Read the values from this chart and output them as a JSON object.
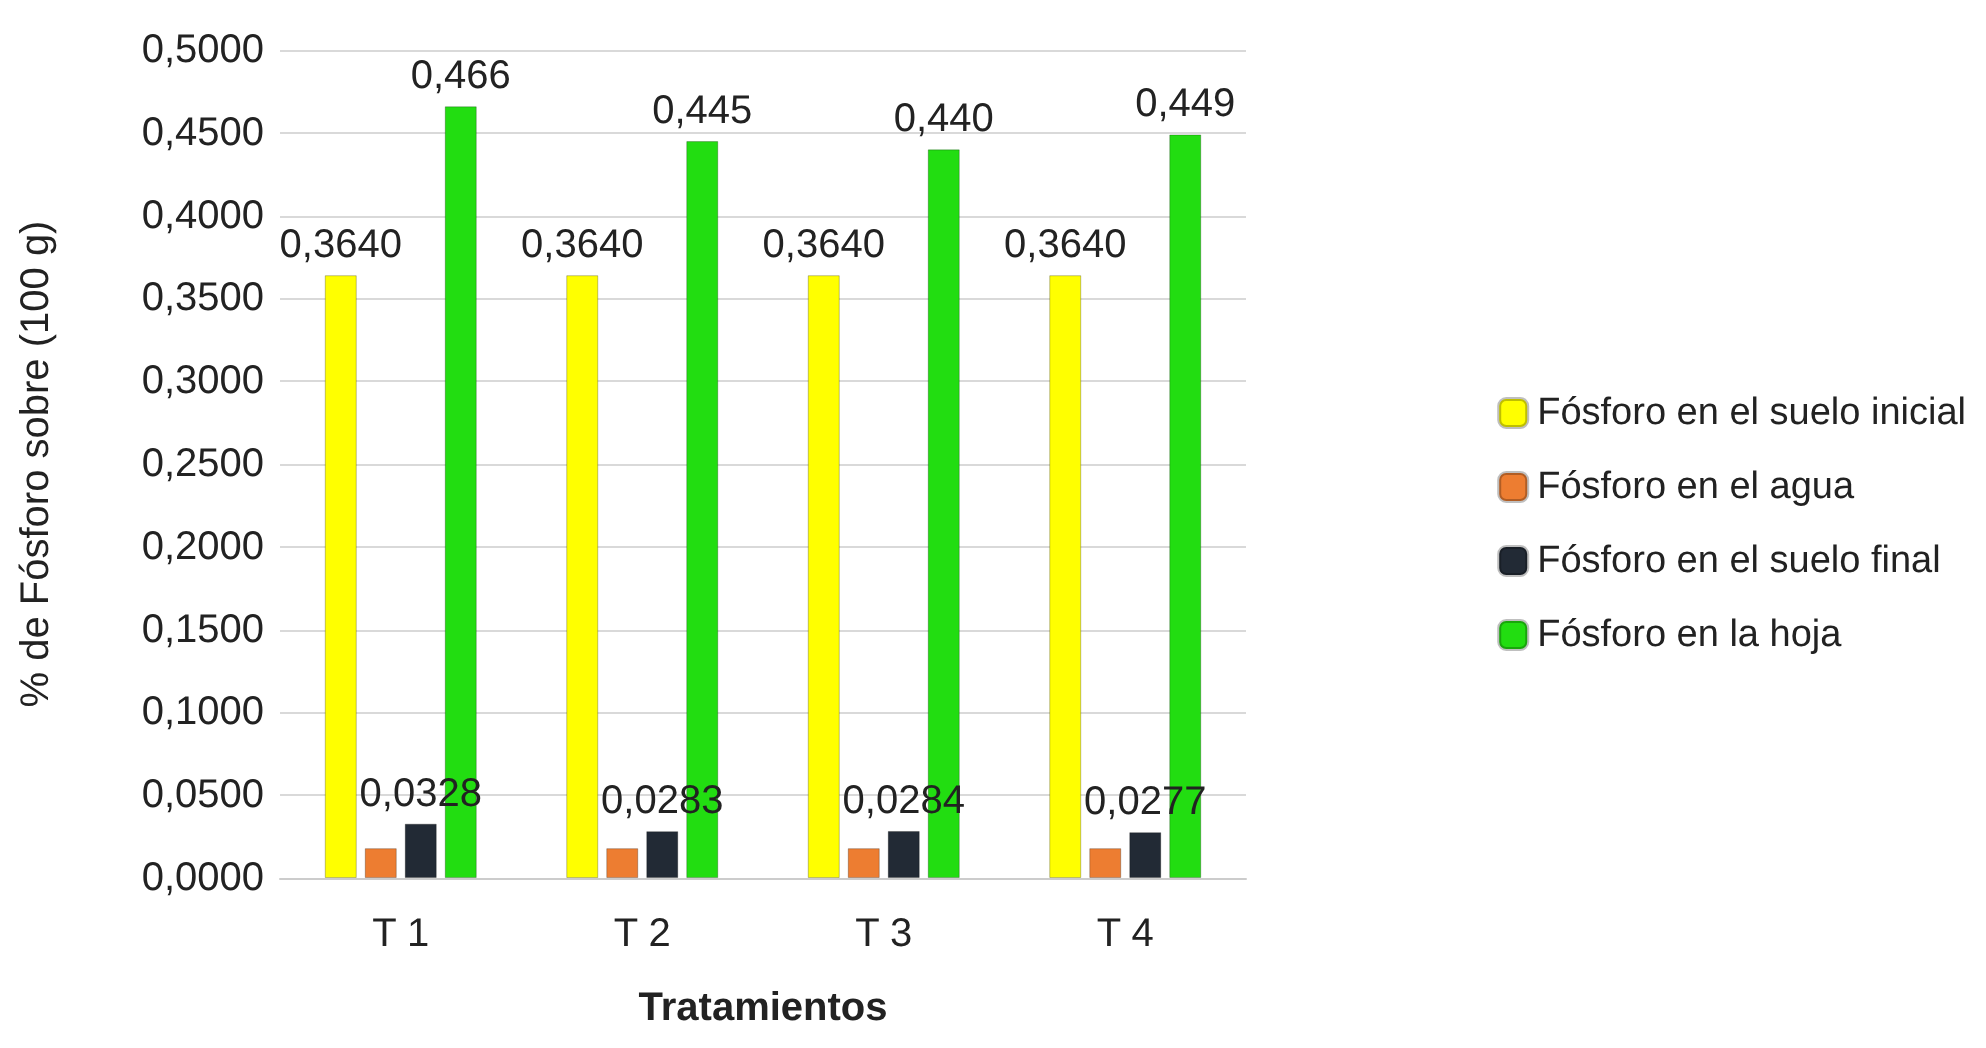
{
  "chart_data": {
    "type": "bar",
    "xlabel": "Tratamientos",
    "ylabel": "% de Fósforo sobre (100 g)",
    "categories": [
      "T 1",
      "T 2",
      "T 3",
      "T 4"
    ],
    "series": [
      {
        "name": "Fósforo en el suelo inicial",
        "color": "#ffff00",
        "values": [
          0.364,
          0.364,
          0.364,
          0.364
        ],
        "value_labels": [
          "0,3640",
          "0,3640",
          "0,3640",
          "0,3640"
        ]
      },
      {
        "name": "Fósforo en el agua",
        "color": "#ed7d31",
        "values": [
          0.018,
          0.018,
          0.018,
          0.018
        ]
      },
      {
        "name": "Fósforo en el suelo final",
        "color": "#222a35",
        "values": [
          0.0328,
          0.0283,
          0.0284,
          0.0277
        ],
        "value_labels": [
          "0,0328",
          "0,0283",
          "0,0284",
          "0,0277"
        ]
      },
      {
        "name": "Fósforo en la hoja",
        "color": "#22dd11",
        "values": [
          0.466,
          0.445,
          0.44,
          0.449
        ],
        "value_labels": [
          "0,466",
          "0,445",
          "0,440",
          "0,449"
        ]
      }
    ],
    "ylim": [
      0,
      0.5
    ],
    "yticks": [
      {
        "value": 0,
        "label": "0,0000"
      },
      {
        "value": 0.05,
        "label": "0,0500"
      },
      {
        "value": 0.1,
        "label": "0,1000"
      },
      {
        "value": 0.15,
        "label": "0,1500"
      },
      {
        "value": 0.2,
        "label": "0,2000"
      },
      {
        "value": 0.25,
        "label": "0,2500"
      },
      {
        "value": 0.3,
        "label": "0,3000"
      },
      {
        "value": 0.35,
        "label": "0,3500"
      },
      {
        "value": 0.4,
        "label": "0,4000"
      },
      {
        "value": 0.45,
        "label": "0,4500"
      },
      {
        "value": 0.5,
        "label": "0,5000"
      }
    ],
    "grid": "y",
    "legend": "right"
  }
}
